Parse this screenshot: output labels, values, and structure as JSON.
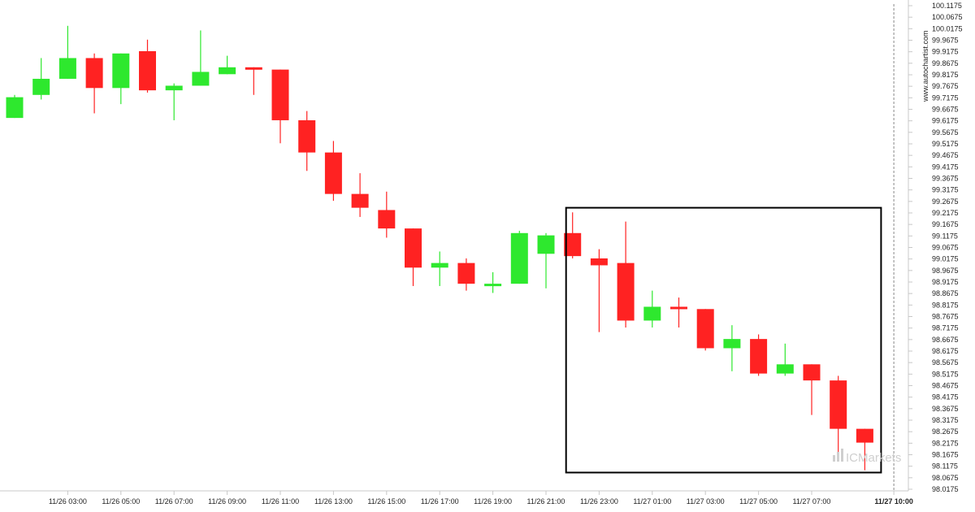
{
  "watermark": "www.autochartist.com",
  "logo": {
    "text": "ICMarkets"
  },
  "colors": {
    "bull": "#2ee82e",
    "bear": "#ff2222",
    "grid_axis": "#c8c8c8",
    "box": "#000000",
    "last_line": "#888888"
  },
  "chart_data": {
    "type": "candlestick",
    "y_tick_labels": [
      "100.1175",
      "100.0675",
      "100.0175",
      "99.9675",
      "99.9175",
      "99.8675",
      "99.8175",
      "99.7675",
      "99.7175",
      "99.6675",
      "99.6175",
      "99.5675",
      "99.5175",
      "99.4675",
      "99.4175",
      "99.3675",
      "99.3175",
      "99.2675",
      "99.2175",
      "99.1675",
      "99.1175",
      "99.0675",
      "99.0175",
      "98.9675",
      "98.9175",
      "98.8675",
      "98.8175",
      "98.7675",
      "98.7175",
      "98.6675",
      "98.6175",
      "98.5675",
      "98.5175",
      "98.4675",
      "98.4175",
      "98.3675",
      "98.3175",
      "98.2675",
      "98.2175",
      "98.1675",
      "98.1175",
      "98.0675",
      "98.0175"
    ],
    "ylim": [
      98.0175,
      100.1175
    ],
    "x_tick_labels": [
      {
        "label": "11/26 03:00",
        "index": 2
      },
      {
        "label": "11/26 05:00",
        "index": 4
      },
      {
        "label": "11/26 07:00",
        "index": 6
      },
      {
        "label": "11/26 09:00",
        "index": 8
      },
      {
        "label": "11/26 11:00",
        "index": 10
      },
      {
        "label": "11/26 13:00",
        "index": 12
      },
      {
        "label": "11/26 15:00",
        "index": 14
      },
      {
        "label": "11/26 17:00",
        "index": 16
      },
      {
        "label": "11/26 19:00",
        "index": 18
      },
      {
        "label": "11/26 21:00",
        "index": 20
      },
      {
        "label": "11/26 23:00",
        "index": 22
      },
      {
        "label": "11/27 01:00",
        "index": 24
      },
      {
        "label": "11/27 03:00",
        "index": 26
      },
      {
        "label": "11/27 05:00",
        "index": 28
      },
      {
        "label": "11/27 07:00",
        "index": 30
      },
      {
        "label": "11/27 10:00",
        "index": 33,
        "bold": true
      }
    ],
    "candles": [
      {
        "o": 99.63,
        "h": 99.73,
        "l": 99.63,
        "c": 99.72
      },
      {
        "o": 99.73,
        "h": 99.89,
        "l": 99.71,
        "c": 99.8
      },
      {
        "o": 99.8,
        "h": 100.03,
        "l": 99.8,
        "c": 99.89
      },
      {
        "o": 99.89,
        "h": 99.91,
        "l": 99.65,
        "c": 99.76
      },
      {
        "o": 99.76,
        "h": 99.91,
        "l": 99.69,
        "c": 99.91
      },
      {
        "o": 99.92,
        "h": 99.97,
        "l": 99.74,
        "c": 99.75
      },
      {
        "o": 99.75,
        "h": 99.78,
        "l": 99.62,
        "c": 99.77
      },
      {
        "o": 99.77,
        "h": 100.01,
        "l": 99.77,
        "c": 99.83
      },
      {
        "o": 99.82,
        "h": 99.9,
        "l": 99.82,
        "c": 99.85
      },
      {
        "o": 99.85,
        "h": 99.85,
        "l": 99.73,
        "c": 99.84
      },
      {
        "o": 99.84,
        "h": 99.84,
        "l": 99.52,
        "c": 99.62
      },
      {
        "o": 99.62,
        "h": 99.66,
        "l": 99.4,
        "c": 99.48
      },
      {
        "o": 99.48,
        "h": 99.53,
        "l": 99.27,
        "c": 99.3
      },
      {
        "o": 99.3,
        "h": 99.39,
        "l": 99.2,
        "c": 99.24
      },
      {
        "o": 99.23,
        "h": 99.31,
        "l": 99.11,
        "c": 99.15
      },
      {
        "o": 99.15,
        "h": 99.15,
        "l": 98.9,
        "c": 98.98
      },
      {
        "o": 98.98,
        "h": 99.05,
        "l": 98.9,
        "c": 99.0
      },
      {
        "o": 99.0,
        "h": 99.02,
        "l": 98.88,
        "c": 98.91
      },
      {
        "o": 98.91,
        "h": 98.96,
        "l": 98.87,
        "c": 98.91
      },
      {
        "o": 98.91,
        "h": 99.14,
        "l": 98.91,
        "c": 99.13
      },
      {
        "o": 99.04,
        "h": 99.13,
        "l": 98.89,
        "c": 99.12
      },
      {
        "o": 99.13,
        "h": 99.22,
        "l": 99.02,
        "c": 99.03
      },
      {
        "o": 99.02,
        "h": 99.06,
        "l": 98.7,
        "c": 98.99
      },
      {
        "o": 99.0,
        "h": 99.18,
        "l": 98.72,
        "c": 98.75
      },
      {
        "o": 98.75,
        "h": 98.88,
        "l": 98.72,
        "c": 98.81
      },
      {
        "o": 98.81,
        "h": 98.85,
        "l": 98.72,
        "c": 98.8
      },
      {
        "o": 98.8,
        "h": 98.8,
        "l": 98.62,
        "c": 98.63
      },
      {
        "o": 98.63,
        "h": 98.73,
        "l": 98.53,
        "c": 98.67
      },
      {
        "o": 98.67,
        "h": 98.69,
        "l": 98.51,
        "c": 98.52
      },
      {
        "o": 98.52,
        "h": 98.65,
        "l": 98.51,
        "c": 98.56
      },
      {
        "o": 98.56,
        "h": 98.56,
        "l": 98.34,
        "c": 98.49
      },
      {
        "o": 98.49,
        "h": 98.51,
        "l": 98.17,
        "c": 98.28
      },
      {
        "o": 98.28,
        "h": 98.28,
        "l": 98.1,
        "c": 98.22
      }
    ],
    "highlight_box": {
      "from_index": 21,
      "to_index": 32,
      "y_top": 99.24,
      "y_bottom": 98.09
    },
    "last_time_index": 33,
    "grid": false,
    "legend": "none"
  }
}
